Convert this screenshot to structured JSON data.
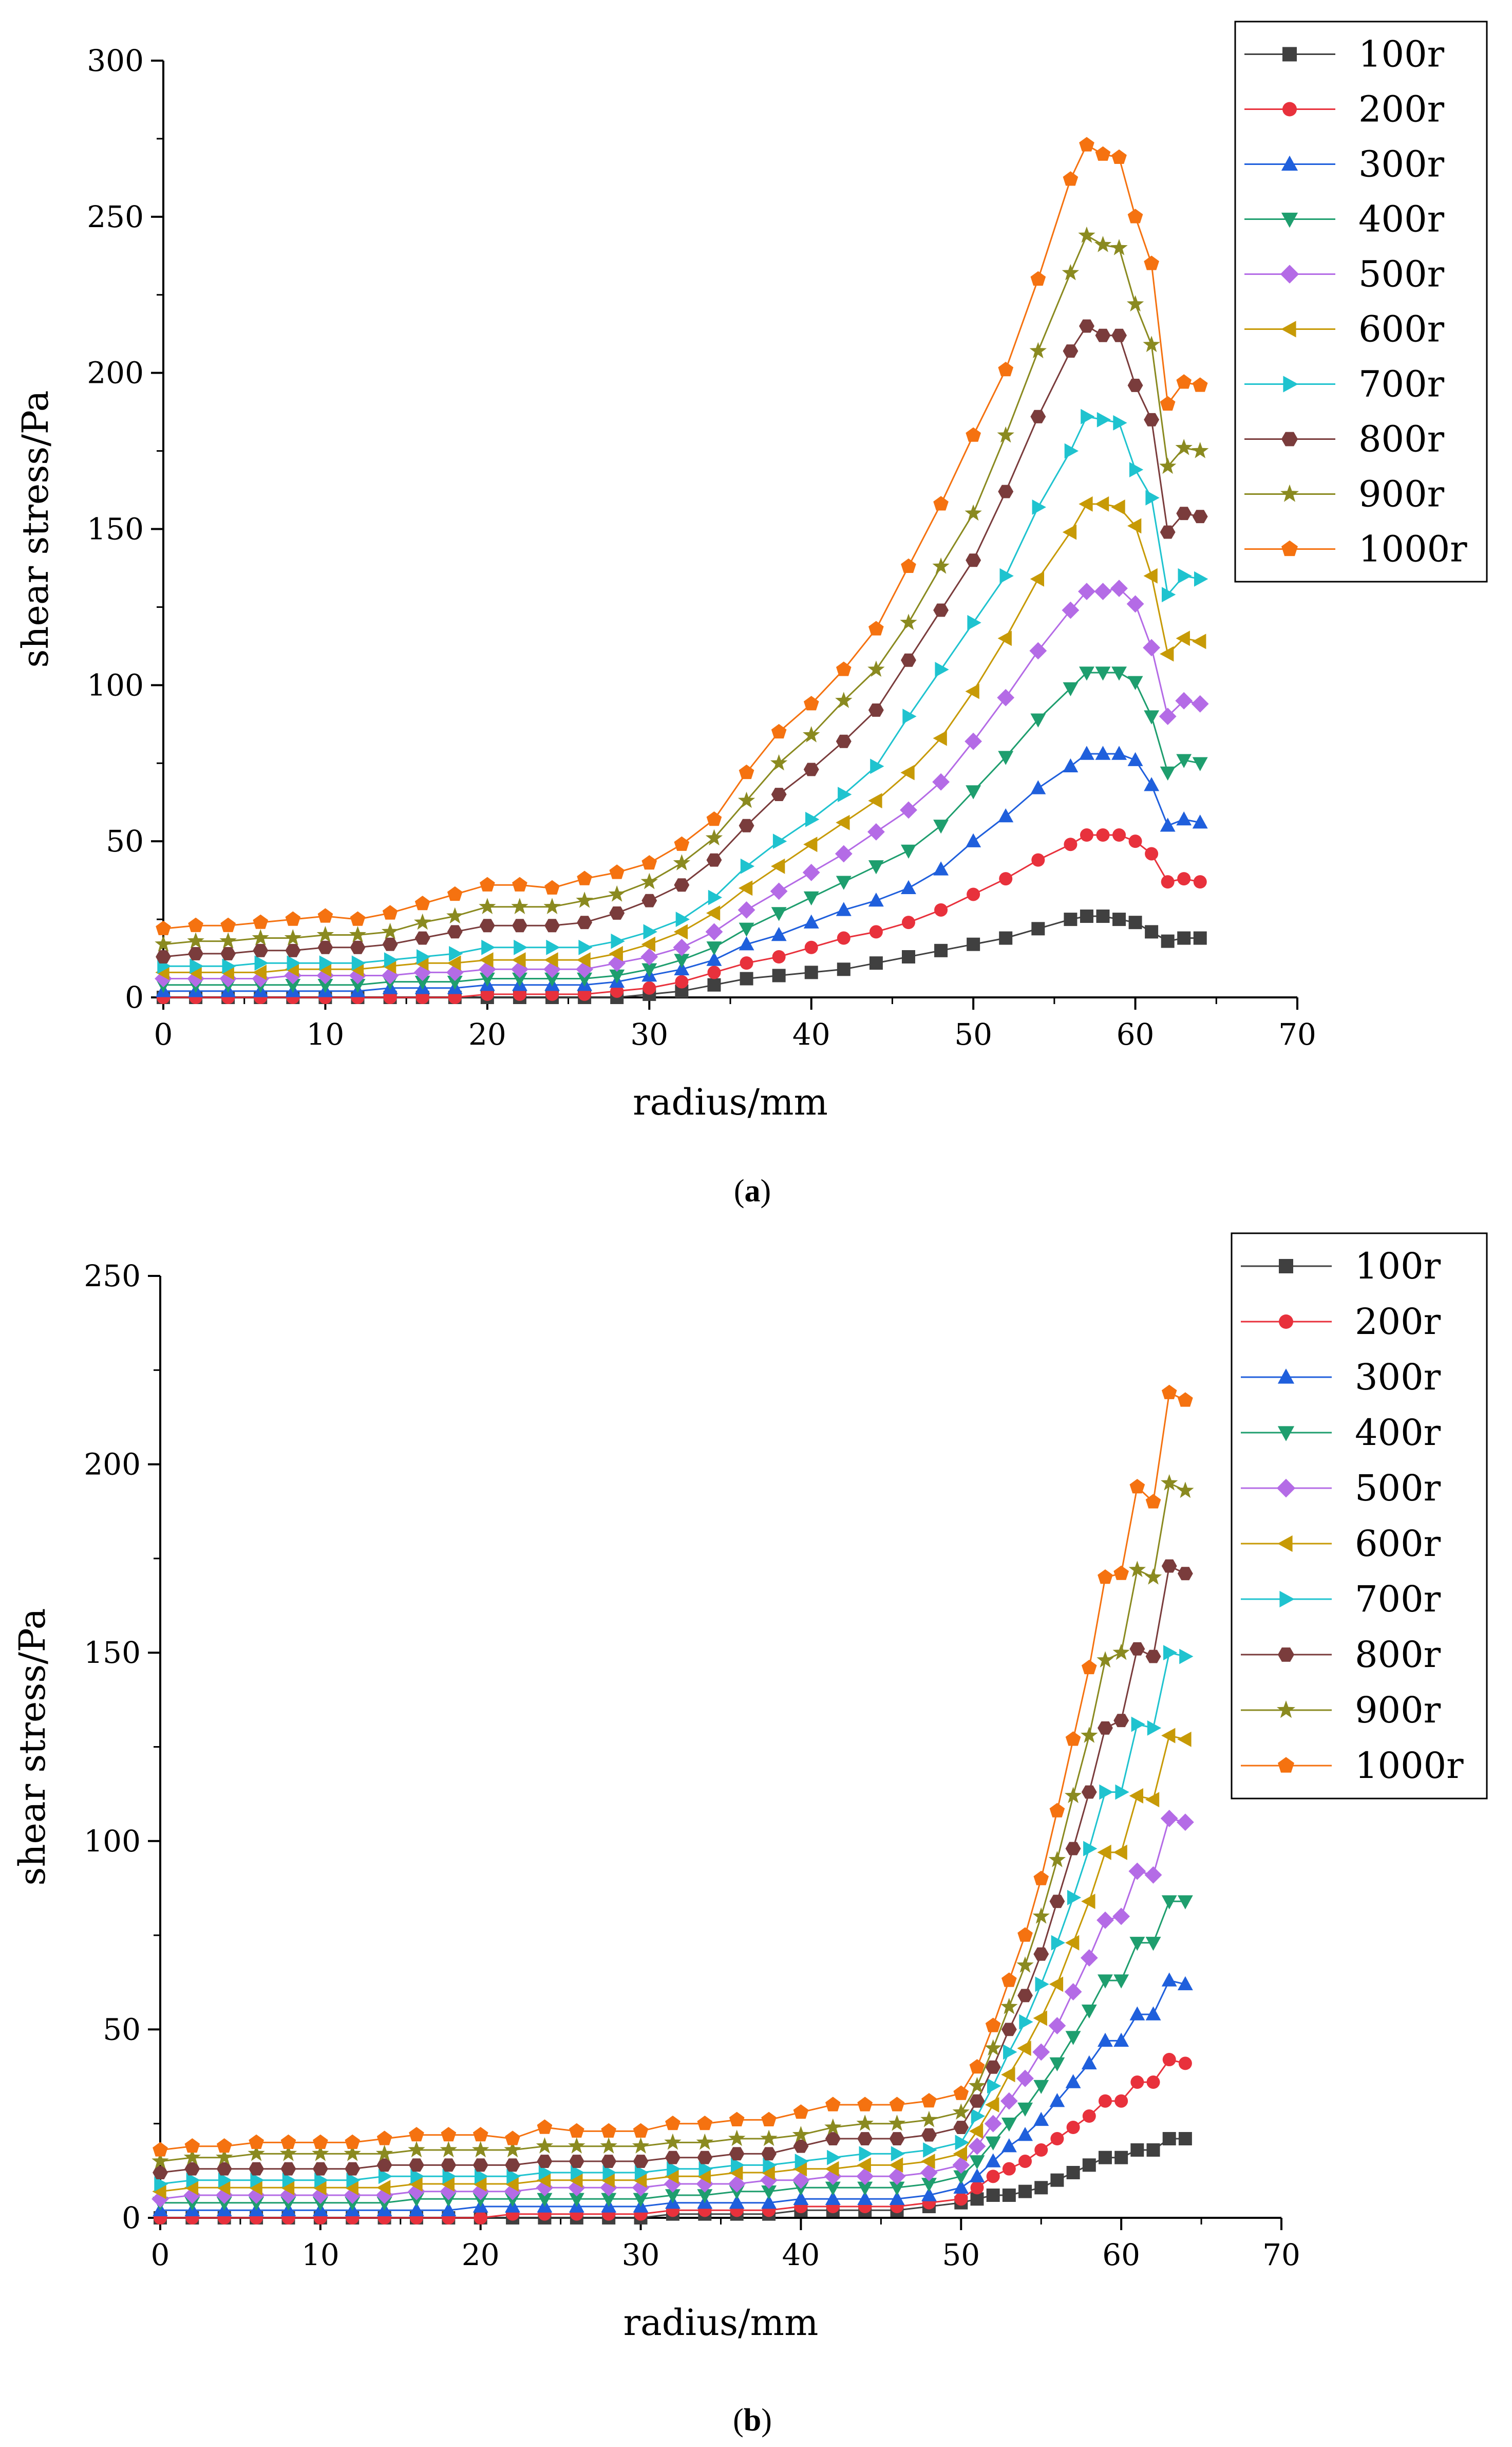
{
  "chart_data": [
    {
      "panel_label": "a",
      "type": "line",
      "xlabel": "radius/mm",
      "ylabel": "shear stress/Pa",
      "xlim": [
        0,
        70
      ],
      "ylim": [
        0,
        300
      ],
      "xticks": [
        "0",
        "10",
        "20",
        "30",
        "40",
        "50",
        "60",
        "70"
      ],
      "yticks": [
        "0",
        "50",
        "100",
        "150",
        "200",
        "250",
        "300"
      ],
      "legend_position": "top-right",
      "x": [
        0,
        2,
        4,
        6,
        8,
        10,
        12,
        14,
        16,
        18,
        20,
        22,
        24,
        26,
        28,
        30,
        32,
        34,
        36,
        38,
        40,
        42,
        44,
        46,
        48,
        50,
        52,
        54,
        56,
        57,
        58,
        59,
        60,
        61,
        62,
        63,
        64
      ],
      "series": [
        {
          "name": "100r",
          "marker": "square",
          "color": "#404040",
          "values": [
            0,
            0,
            0,
            0,
            0,
            0,
            0,
            0,
            0,
            0,
            0,
            0,
            0,
            0,
            0,
            1,
            2,
            4,
            6,
            7,
            8,
            9,
            11,
            13,
            15,
            17,
            19,
            22,
            25,
            26,
            26,
            25,
            24,
            21,
            18,
            19,
            19
          ]
        },
        {
          "name": "200r",
          "marker": "circle",
          "color": "#e8313c",
          "values": [
            0,
            0,
            0,
            0,
            0,
            0,
            0,
            0,
            0,
            0,
            1,
            1,
            1,
            1,
            2,
            3,
            5,
            8,
            11,
            13,
            16,
            19,
            21,
            24,
            28,
            33,
            38,
            44,
            49,
            52,
            52,
            52,
            50,
            46,
            37,
            38,
            37
          ]
        },
        {
          "name": "300r",
          "marker": "triangle-up",
          "color": "#1f5fdc",
          "values": [
            2,
            2,
            2,
            2,
            2,
            2,
            2,
            3,
            3,
            3,
            4,
            4,
            4,
            4,
            5,
            7,
            9,
            12,
            17,
            20,
            24,
            28,
            31,
            35,
            41,
            50,
            58,
            67,
            74,
            78,
            78,
            78,
            76,
            68,
            55,
            57,
            56
          ]
        },
        {
          "name": "400r",
          "marker": "triangle-down",
          "color": "#1e9e6e",
          "values": [
            4,
            4,
            4,
            4,
            4,
            4,
            4,
            5,
            5,
            5,
            6,
            6,
            6,
            6,
            7,
            9,
            12,
            16,
            22,
            27,
            32,
            37,
            42,
            47,
            55,
            66,
            77,
            89,
            99,
            104,
            104,
            104,
            101,
            90,
            72,
            76,
            75
          ]
        },
        {
          "name": "500r",
          "marker": "diamond",
          "color": "#b46be6",
          "values": [
            6,
            6,
            6,
            6,
            7,
            7,
            7,
            7,
            8,
            8,
            9,
            9,
            9,
            9,
            11,
            13,
            16,
            21,
            28,
            34,
            40,
            46,
            53,
            60,
            69,
            82,
            96,
            111,
            124,
            130,
            130,
            131,
            126,
            112,
            90,
            95,
            94
          ]
        },
        {
          "name": "600r",
          "marker": "triangle-left",
          "color": "#c79a06",
          "values": [
            8,
            8,
            8,
            8,
            9,
            9,
            9,
            10,
            11,
            11,
            12,
            12,
            12,
            12,
            14,
            17,
            21,
            27,
            35,
            42,
            49,
            56,
            63,
            72,
            83,
            98,
            115,
            134,
            149,
            158,
            158,
            157,
            151,
            135,
            110,
            115,
            114
          ]
        },
        {
          "name": "700r",
          "marker": "triangle-right",
          "color": "#1fc3cf",
          "values": [
            10,
            10,
            10,
            11,
            11,
            11,
            11,
            12,
            13,
            14,
            16,
            16,
            16,
            16,
            18,
            21,
            25,
            32,
            42,
            50,
            57,
            65,
            74,
            90,
            105,
            120,
            135,
            157,
            175,
            186,
            185,
            184,
            169,
            160,
            129,
            135,
            134
          ]
        },
        {
          "name": "800r",
          "marker": "hexagon",
          "color": "#7a3c3c",
          "values": [
            13,
            14,
            14,
            15,
            15,
            16,
            16,
            17,
            19,
            21,
            23,
            23,
            23,
            24,
            27,
            31,
            36,
            44,
            55,
            65,
            73,
            82,
            92,
            108,
            124,
            140,
            162,
            186,
            207,
            215,
            212,
            212,
            196,
            185,
            149,
            155,
            154
          ]
        },
        {
          "name": "900r",
          "marker": "star",
          "color": "#8a8a20",
          "values": [
            17,
            18,
            18,
            19,
            19,
            20,
            20,
            21,
            24,
            26,
            29,
            29,
            29,
            31,
            33,
            37,
            43,
            51,
            63,
            75,
            84,
            95,
            105,
            120,
            138,
            155,
            180,
            207,
            232,
            244,
            241,
            240,
            222,
            209,
            170,
            176,
            175
          ]
        },
        {
          "name": "1000r",
          "marker": "pentagon",
          "color": "#f57210",
          "values": [
            22,
            23,
            23,
            24,
            25,
            26,
            25,
            27,
            30,
            33,
            36,
            36,
            35,
            38,
            40,
            43,
            49,
            57,
            72,
            85,
            94,
            105,
            118,
            138,
            158,
            180,
            201,
            230,
            262,
            273,
            270,
            269,
            250,
            235,
            190,
            197,
            196
          ]
        }
      ]
    },
    {
      "panel_label": "b",
      "type": "line",
      "xlabel": "radius/mm",
      "ylabel": "shear stress/Pa",
      "xlim": [
        0,
        70
      ],
      "ylim": [
        0,
        250
      ],
      "xticks": [
        "0",
        "10",
        "20",
        "30",
        "40",
        "50",
        "60",
        "70"
      ],
      "yticks": [
        "0",
        "50",
        "100",
        "150",
        "200",
        "250"
      ],
      "legend_position": "top-right",
      "x": [
        0,
        2,
        4,
        6,
        8,
        10,
        12,
        14,
        16,
        18,
        20,
        22,
        24,
        26,
        28,
        30,
        32,
        34,
        36,
        38,
        40,
        42,
        44,
        46,
        48,
        50,
        51,
        52,
        53,
        54,
        55,
        56,
        57,
        58,
        59,
        60,
        61,
        62,
        63,
        64
      ],
      "series": [
        {
          "name": "100r",
          "marker": "square",
          "color": "#404040",
          "values": [
            0,
            0,
            0,
            0,
            0,
            0,
            0,
            0,
            0,
            0,
            0,
            0,
            0,
            0,
            0,
            0,
            1,
            1,
            1,
            1,
            2,
            2,
            2,
            2,
            3,
            4,
            5,
            6,
            6,
            7,
            8,
            10,
            12,
            14,
            16,
            16,
            18,
            18,
            21,
            21
          ]
        },
        {
          "name": "200r",
          "marker": "circle",
          "color": "#e8313c",
          "values": [
            0,
            0,
            0,
            0,
            0,
            0,
            0,
            0,
            0,
            0,
            0,
            1,
            1,
            1,
            1,
            1,
            2,
            2,
            2,
            2,
            3,
            3,
            3,
            3,
            4,
            5,
            8,
            11,
            13,
            15,
            18,
            21,
            24,
            27,
            31,
            31,
            36,
            36,
            42,
            41
          ]
        },
        {
          "name": "300r",
          "marker": "triangle-up",
          "color": "#1f5fdc",
          "values": [
            2,
            2,
            2,
            2,
            2,
            2,
            2,
            2,
            2,
            2,
            3,
            3,
            3,
            3,
            3,
            3,
            4,
            4,
            4,
            4,
            5,
            5,
            5,
            5,
            6,
            8,
            11,
            15,
            19,
            22,
            26,
            31,
            36,
            41,
            47,
            47,
            54,
            54,
            63,
            62
          ]
        },
        {
          "name": "400r",
          "marker": "triangle-down",
          "color": "#1e9e6e",
          "values": [
            4,
            4,
            4,
            4,
            4,
            4,
            4,
            4,
            5,
            5,
            5,
            5,
            5,
            5,
            5,
            5,
            6,
            6,
            7,
            7,
            8,
            8,
            8,
            8,
            9,
            11,
            15,
            20,
            25,
            29,
            35,
            41,
            48,
            55,
            63,
            63,
            73,
            73,
            84,
            84
          ]
        },
        {
          "name": "500r",
          "marker": "diamond",
          "color": "#b46be6",
          "values": [
            5,
            6,
            6,
            6,
            6,
            6,
            6,
            6,
            7,
            7,
            7,
            7,
            8,
            8,
            8,
            8,
            9,
            9,
            9,
            10,
            10,
            11,
            11,
            11,
            12,
            14,
            19,
            25,
            31,
            37,
            44,
            51,
            60,
            69,
            79,
            80,
            92,
            91,
            106,
            105
          ]
        },
        {
          "name": "600r",
          "marker": "triangle-left",
          "color": "#c79a06",
          "values": [
            7,
            8,
            8,
            8,
            8,
            8,
            8,
            8,
            9,
            9,
            9,
            9,
            10,
            10,
            10,
            10,
            11,
            11,
            12,
            12,
            13,
            13,
            14,
            14,
            15,
            17,
            23,
            30,
            38,
            45,
            53,
            62,
            73,
            84,
            97,
            97,
            112,
            111,
            128,
            127
          ]
        },
        {
          "name": "700r",
          "marker": "triangle-right",
          "color": "#1fc3cf",
          "values": [
            9,
            10,
            10,
            10,
            10,
            10,
            10,
            11,
            11,
            11,
            11,
            11,
            12,
            12,
            12,
            12,
            13,
            13,
            14,
            14,
            15,
            16,
            17,
            17,
            18,
            20,
            27,
            35,
            44,
            52,
            62,
            73,
            85,
            98,
            113,
            113,
            131,
            130,
            150,
            149
          ]
        },
        {
          "name": "800r",
          "marker": "hexagon",
          "color": "#7a3c3c",
          "values": [
            12,
            13,
            13,
            13,
            13,
            13,
            13,
            14,
            14,
            14,
            14,
            14,
            15,
            15,
            15,
            15,
            16,
            16,
            17,
            17,
            19,
            21,
            21,
            21,
            22,
            24,
            31,
            40,
            50,
            59,
            70,
            84,
            98,
            113,
            130,
            132,
            151,
            149,
            173,
            171
          ]
        },
        {
          "name": "900r",
          "marker": "star",
          "color": "#8a8a20",
          "values": [
            15,
            16,
            16,
            17,
            17,
            17,
            17,
            17,
            18,
            18,
            18,
            18,
            19,
            19,
            19,
            19,
            20,
            20,
            21,
            21,
            22,
            24,
            25,
            25,
            26,
            28,
            35,
            45,
            56,
            67,
            80,
            95,
            112,
            128,
            148,
            150,
            172,
            170,
            195,
            193
          ]
        },
        {
          "name": "1000r",
          "marker": "pentagon",
          "color": "#f57210",
          "values": [
            18,
            19,
            19,
            20,
            20,
            20,
            20,
            21,
            22,
            22,
            22,
            21,
            24,
            23,
            23,
            23,
            25,
            25,
            26,
            26,
            28,
            30,
            30,
            30,
            31,
            33,
            40,
            51,
            63,
            75,
            90,
            108,
            127,
            146,
            170,
            171,
            194,
            190,
            219,
            217
          ]
        }
      ]
    }
  ]
}
